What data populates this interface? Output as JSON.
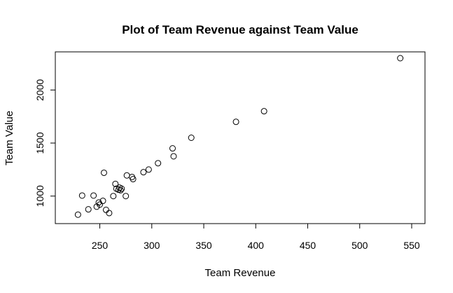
{
  "chart_data": {
    "type": "scatter",
    "title": "Plot of Team Revenue against Team Value",
    "xlabel": "Team Revenue",
    "ylabel": "Team Value",
    "xlim": [
      220,
      550
    ],
    "ylim": [
      800,
      2300
    ],
    "x_ticks": [
      250,
      300,
      350,
      400,
      450,
      500,
      550
    ],
    "y_ticks": [
      1000,
      1500,
      2000
    ],
    "grid": false,
    "legend": "none",
    "points": [
      {
        "x": 229,
        "y": 825
      },
      {
        "x": 233,
        "y": 1005
      },
      {
        "x": 239,
        "y": 875
      },
      {
        "x": 244,
        "y": 1005
      },
      {
        "x": 247,
        "y": 900
      },
      {
        "x": 249,
        "y": 940
      },
      {
        "x": 250,
        "y": 920
      },
      {
        "x": 253,
        "y": 955
      },
      {
        "x": 254,
        "y": 1220
      },
      {
        "x": 256,
        "y": 870
      },
      {
        "x": 259,
        "y": 840
      },
      {
        "x": 263,
        "y": 1000
      },
      {
        "x": 265,
        "y": 1115
      },
      {
        "x": 266,
        "y": 1070
      },
      {
        "x": 268,
        "y": 1060
      },
      {
        "x": 269,
        "y": 1080
      },
      {
        "x": 270,
        "y": 1055
      },
      {
        "x": 271,
        "y": 1070
      },
      {
        "x": 275,
        "y": 1000
      },
      {
        "x": 276,
        "y": 1195
      },
      {
        "x": 281,
        "y": 1180
      },
      {
        "x": 282,
        "y": 1160
      },
      {
        "x": 292,
        "y": 1225
      },
      {
        "x": 297,
        "y": 1250
      },
      {
        "x": 306,
        "y": 1310
      },
      {
        "x": 320,
        "y": 1450
      },
      {
        "x": 321,
        "y": 1375
      },
      {
        "x": 338,
        "y": 1550
      },
      {
        "x": 381,
        "y": 1700
      },
      {
        "x": 408,
        "y": 1800
      },
      {
        "x": 539,
        "y": 2300
      }
    ]
  }
}
